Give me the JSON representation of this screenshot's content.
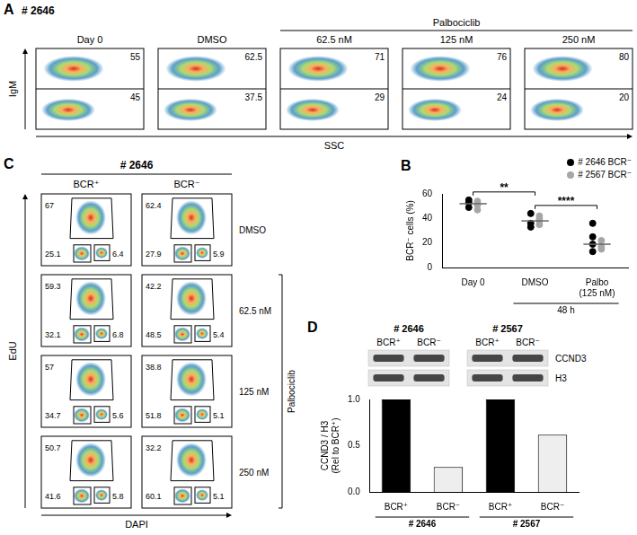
{
  "figure_panels": {
    "A": {
      "letter": "A",
      "sample": "# 2646",
      "y_label": "IgM",
      "x_label": "SSC",
      "plots": [
        {
          "title": "Day 0",
          "upper": 55,
          "lower": 45
        },
        {
          "title": "DMSO",
          "upper": 62.5,
          "lower": 37.5
        },
        {
          "title": "62.5 nM",
          "upper": 71,
          "lower": 29
        },
        {
          "title": "125 nM",
          "upper": 76,
          "lower": 24
        },
        {
          "title": "250 nM",
          "upper": 80,
          "lower": 20
        }
      ],
      "bracket": {
        "label": "Palbociclib",
        "over": [
          "62.5 nM",
          "125 nM",
          "250 nM"
        ]
      }
    },
    "C": {
      "letter": "C",
      "sample": "# 2646",
      "columns": [
        "BCR⁺",
        "BCR⁻"
      ],
      "y_label": "EdU",
      "x_label": "DAPI",
      "rows": [
        {
          "label": "DMSO",
          "cells": [
            {
              "top": 67,
              "bottom_left": 25.1,
              "bottom_right": 6.4
            },
            {
              "top": 62.4,
              "bottom_left": 27.9,
              "bottom_right": 5.9
            }
          ]
        },
        {
          "label": "62.5 nM",
          "cells": [
            {
              "top": 59.3,
              "bottom_left": 32.1,
              "bottom_right": 6.8
            },
            {
              "top": 42.2,
              "bottom_left": 48.5,
              "bottom_right": 5.4
            }
          ]
        },
        {
          "label": "125 nM",
          "cells": [
            {
              "top": 57,
              "bottom_left": 34.7,
              "bottom_right": 5.6
            },
            {
              "top": 38.8,
              "bottom_left": 51.8,
              "bottom_right": 5.1
            }
          ]
        },
        {
          "label": "250 nM",
          "cells": [
            {
              "top": 50.7,
              "bottom_left": 41.6,
              "bottom_right": 5.8
            },
            {
              "top": 32.2,
              "bottom_left": 60.1,
              "bottom_right": 5.1
            }
          ]
        }
      ],
      "bracket": {
        "label": "Palbociclib",
        "over": [
          "62.5 nM",
          "125 nM",
          "250 nM"
        ]
      }
    },
    "D_blot": {
      "letter": "D",
      "lanes": [
        "BCR⁺",
        "BCR⁻",
        "BCR⁺",
        "BCR⁻"
      ],
      "lane_groups": [
        "# 2646",
        "# 2646",
        "# 2567",
        "# 2567"
      ],
      "bands": [
        "CCND3",
        "H3"
      ]
    }
  },
  "chart_data": [
    {
      "panel": "B",
      "type": "scatter",
      "categories": [
        "Day 0",
        "DMSO",
        "Palbo (125 nM)"
      ],
      "series": [
        {
          "name": "# 2646 BCR⁻",
          "color": "#000000",
          "values": [
            [
              55,
              53,
              49
            ],
            [
              44,
              36,
              33
            ],
            [
              36,
              25,
              19,
              13
            ]
          ]
        },
        {
          "name": "# 2567 BCR⁻",
          "color": "#a6a6a6",
          "values": [
            [
              54,
              52,
              47,
              51
            ],
            [
              42,
              40,
              38,
              35
            ],
            [
              22,
              17,
              15
            ]
          ]
        }
      ],
      "medians": [
        52,
        38,
        19
      ],
      "y_label": "BCR⁻ cells (%)",
      "ylim": [
        0,
        60
      ],
      "yticks": [
        0,
        20,
        40,
        60
      ],
      "grid": false,
      "legend": "top-right",
      "marker": "circle",
      "annotations": [
        {
          "text": "**",
          "from": "Day 0",
          "to": "DMSO"
        },
        {
          "text": "****",
          "from": "DMSO",
          "to": "Palbo (125 nM)"
        }
      ],
      "bracket": {
        "label": "48 h",
        "over": [
          "DMSO",
          "Palbo (125 nM)"
        ]
      }
    },
    {
      "type": "bar",
      "categories": [
        "BCR⁺",
        "BCR⁻",
        "BCR⁺",
        "BCR⁻"
      ],
      "category_groups": [
        "# 2646",
        "# 2646",
        "# 2567",
        "# 2567"
      ],
      "values": [
        1,
        0.27,
        1,
        0.62
      ],
      "colors": [
        "#000000",
        "#eeeeee",
        "#000000",
        "#eeeeee"
      ],
      "y_label": "CCND3 / H3 (Rel to BCR⁺)",
      "ylim": [
        0,
        1
      ],
      "yticks": [
        {
          "value": 0,
          "label": "0.0"
        },
        0.5,
        {
          "value": 1,
          "label": "1.0"
        }
      ],
      "grid": false
    }
  ]
}
